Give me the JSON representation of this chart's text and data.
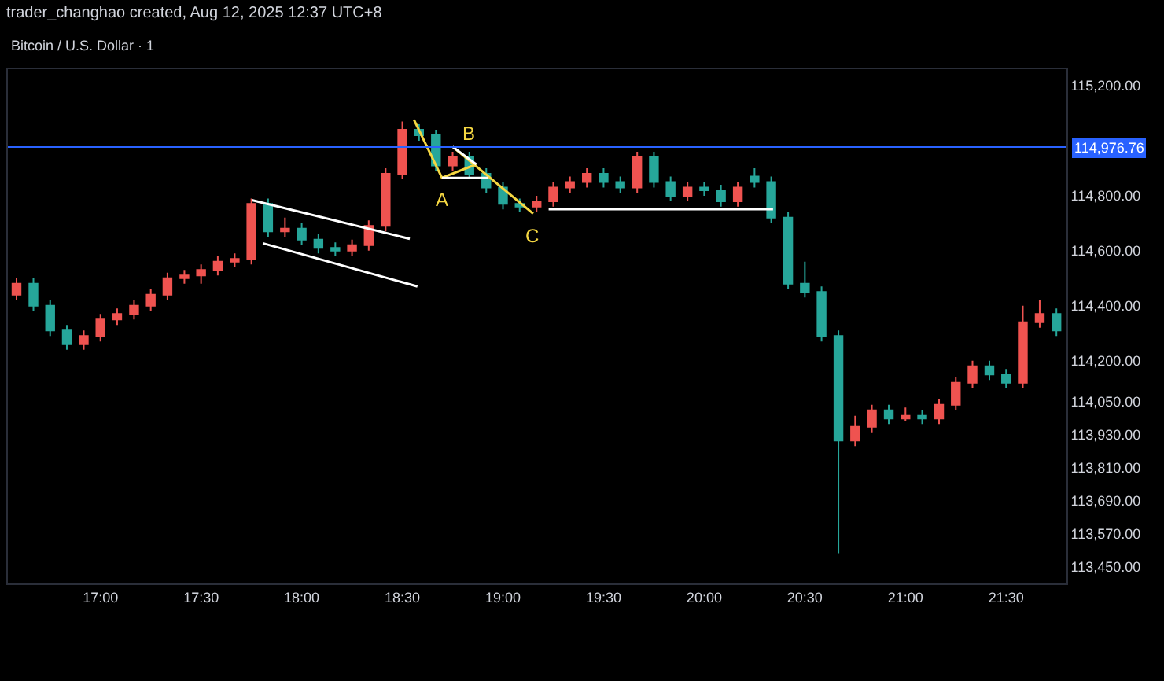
{
  "chart_data": {
    "type": "candlestick",
    "title": "Bitcoin / U.S. Dollar · 1",
    "subtitle": "trader_changhao created, Aug 12, 2025 12:37 UTC+8",
    "colors": [
      "#ef5350",
      "#26a69a",
      "#26a69a",
      "#26a69a",
      "#ef5350",
      "#ef5350",
      "#ef5350",
      "#ef5350",
      "#ef5350",
      "#ef5350",
      "#ef5350",
      "#ef5350",
      "#ef5350",
      "#ef5350",
      "#ef5350",
      "#26a69a",
      "#ef5350",
      "#26a69a",
      "#26a69a",
      "#26a69a",
      "#ef5350",
      "#ef5350",
      "#ef5350",
      "#ef5350",
      "#26a69a",
      "#26a69a",
      "#ef5350",
      "#26a69a",
      "#26a69a",
      "#26a69a",
      "#26a69a",
      "#ef5350",
      "#ef5350",
      "#ef5350",
      "#ef5350",
      "#26a69a",
      "#26a69a",
      "#ef5350",
      "#26a69a",
      "#26a69a",
      "#ef5350",
      "#26a69a",
      "#26a69a",
      "#ef5350",
      "#26a69a",
      "#26a69a",
      "#26a69a",
      "#26a69a",
      "#26a69a",
      "#26a69a",
      "#ef5350",
      "#ef5350",
      "#26a69a",
      "#ef5350",
      "#26a69a",
      "#ef5350",
      "#ef5350",
      "#ef5350",
      "#26a69a",
      "#26a69a",
      "#ef5350",
      "#ef5350",
      "#26a69a"
    ],
    "x": [
      16.583,
      16.667,
      16.75,
      16.833,
      16.917,
      17,
      17.083,
      17.167,
      17.25,
      17.333,
      17.417,
      17.5,
      17.583,
      17.667,
      17.75,
      17.833,
      17.917,
      18,
      18.083,
      18.167,
      18.25,
      18.333,
      18.417,
      18.5,
      18.583,
      18.667,
      18.75,
      18.833,
      18.917,
      19,
      19.083,
      19.167,
      19.25,
      19.333,
      19.417,
      19.5,
      19.583,
      19.667,
      19.75,
      19.833,
      19.917,
      20,
      20.083,
      20.167,
      20.25,
      20.333,
      20.417,
      20.5,
      20.583,
      20.667,
      20.75,
      20.833,
      20.917,
      21,
      21.083,
      21.167,
      21.25,
      21.333,
      21.417,
      21.5,
      21.583,
      21.667,
      21.75
    ],
    "ohlc": [
      [
        114440,
        114500,
        114420,
        114480
      ],
      [
        114480,
        114500,
        114380,
        114400
      ],
      [
        114400,
        114420,
        114290,
        114310
      ],
      [
        114310,
        114330,
        114240,
        114260
      ],
      [
        114260,
        114310,
        114240,
        114290
      ],
      [
        114290,
        114370,
        114270,
        114350
      ],
      [
        114350,
        114390,
        114330,
        114370
      ],
      [
        114370,
        114420,
        114350,
        114400
      ],
      [
        114400,
        114460,
        114380,
        114440
      ],
      [
        114440,
        114520,
        114420,
        114500
      ],
      [
        114500,
        114530,
        114480,
        114510
      ],
      [
        114510,
        114550,
        114480,
        114530
      ],
      [
        114530,
        114580,
        114510,
        114560
      ],
      [
        114560,
        114590,
        114540,
        114570
      ],
      [
        114570,
        114790,
        114550,
        114770
      ],
      [
        114770,
        114790,
        114650,
        114670
      ],
      [
        114670,
        114720,
        114650,
        114680
      ],
      [
        114680,
        114700,
        114620,
        114640
      ],
      [
        114640,
        114660,
        114590,
        114610
      ],
      [
        114610,
        114630,
        114580,
        114600
      ],
      [
        114600,
        114640,
        114580,
        114620
      ],
      [
        114620,
        114710,
        114600,
        114690
      ],
      [
        114690,
        114900,
        114670,
        114880
      ],
      [
        114880,
        115070,
        114860,
        115040
      ],
      [
        115040,
        115060,
        115000,
        115020
      ],
      [
        115020,
        115040,
        114890,
        114910
      ],
      [
        114910,
        114960,
        114890,
        114940
      ],
      [
        114940,
        114960,
        114860,
        114880
      ],
      [
        114880,
        114900,
        114810,
        114830
      ],
      [
        114830,
        114850,
        114750,
        114770
      ],
      [
        114770,
        114790,
        114740,
        114760
      ],
      [
        114760,
        114800,
        114740,
        114780
      ],
      [
        114780,
        114850,
        114760,
        114830
      ],
      [
        114830,
        114870,
        114810,
        114850
      ],
      [
        114850,
        114900,
        114830,
        114880
      ],
      [
        114880,
        114900,
        114830,
        114850
      ],
      [
        114850,
        114870,
        114810,
        114830
      ],
      [
        114830,
        114960,
        114810,
        114940
      ],
      [
        114940,
        114960,
        114830,
        114850
      ],
      [
        114850,
        114870,
        114780,
        114800
      ],
      [
        114800,
        114850,
        114780,
        114830
      ],
      [
        114830,
        114850,
        114800,
        114820
      ],
      [
        114820,
        114840,
        114760,
        114780
      ],
      [
        114780,
        114850,
        114760,
        114830
      ],
      [
        114870,
        114900,
        114830,
        114850
      ],
      [
        114850,
        114870,
        114700,
        114720
      ],
      [
        114720,
        114740,
        114460,
        114480
      ],
      [
        114480,
        114560,
        114430,
        114450
      ],
      [
        114450,
        114470,
        114270,
        114290
      ],
      [
        114290,
        114310,
        113500,
        113910
      ],
      [
        113910,
        114000,
        113890,
        113960
      ],
      [
        113960,
        114040,
        113940,
        114020
      ],
      [
        114020,
        114040,
        113970,
        113990
      ],
      [
        113990,
        114030,
        113980,
        114000
      ],
      [
        114000,
        114020,
        113970,
        113990
      ],
      [
        113990,
        114060,
        113970,
        114040
      ],
      [
        114040,
        114140,
        114020,
        114120
      ],
      [
        114120,
        114200,
        114100,
        114180
      ],
      [
        114180,
        114200,
        114130,
        114150
      ],
      [
        114150,
        114170,
        114100,
        114120
      ],
      [
        114120,
        114400,
        114100,
        114340
      ],
      [
        114340,
        114420,
        114320,
        114370
      ],
      [
        114370,
        114390,
        114290,
        114310
      ]
    ],
    "series": [
      {
        "type": "line",
        "color": "#ffffff",
        "x": [
          17.753,
          18.537
        ],
        "values": [
          114784,
          114643
        ]
      },
      {
        "type": "line",
        "color": "#ffffff",
        "x": [
          17.807,
          18.575
        ],
        "values": [
          114627,
          114470
        ]
      },
      {
        "type": "line",
        "color": "#f5d742",
        "x": [
          18.558,
          18.697,
          18.867
        ],
        "values": [
          115076,
          114865,
          114914
        ]
      },
      {
        "type": "line",
        "color": "#f5d742",
        "x": [
          18.75,
          19.15
        ],
        "values": [
          114978,
          114735
        ]
      },
      {
        "type": "line",
        "color": "#ffffff",
        "x": [
          18.75,
          18.867
        ],
        "values": [
          114978,
          114914
        ]
      },
      {
        "type": "line",
        "color": "#ffffff",
        "x": [
          18.697,
          18.928
        ],
        "values": [
          114865,
          114865
        ]
      },
      {
        "type": "line",
        "color": "#ffffff",
        "x": [
          19.227,
          20.342
        ],
        "values": [
          114751,
          114751
        ]
      }
    ],
    "ref_lines": [
      {
        "axis": "y",
        "value": 114976.76,
        "label": "114,976.76",
        "color": "#2962ff"
      }
    ],
    "annotations": [
      {
        "text": "A",
        "x": 18.697,
        "y": 114865
      },
      {
        "text": "B",
        "x": 18.75,
        "y": 114978
      },
      {
        "text": "C",
        "x": 19.15,
        "y": 114735
      }
    ],
    "xlim": [
      16.54,
      21.8
    ],
    "xticks": [
      {
        "value": 17,
        "label": "17:00"
      },
      {
        "value": 17.5,
        "label": "17:30"
      },
      {
        "value": 18,
        "label": "18:00"
      },
      {
        "value": 18.5,
        "label": "18:30"
      },
      {
        "value": 19,
        "label": "19:00"
      },
      {
        "value": 19.5,
        "label": "19:30"
      },
      {
        "value": 20,
        "label": "20:00"
      },
      {
        "value": 20.5,
        "label": "20:30"
      },
      {
        "value": 21,
        "label": "21:00"
      },
      {
        "value": 21.5,
        "label": "21:30"
      }
    ],
    "ylim": [
      113390,
      115260
    ],
    "yticks": [
      {
        "value": 115200,
        "label": "115,200.00"
      },
      {
        "value": 114800,
        "label": "114,800.00"
      },
      {
        "value": 114600,
        "label": "114,600.00"
      },
      {
        "value": 114400,
        "label": "114,400.00"
      },
      {
        "value": 114200,
        "label": "114,200.00"
      },
      {
        "value": 114050,
        "label": "114,050.00"
      },
      {
        "value": 113930,
        "label": "113,930.00"
      },
      {
        "value": 113810,
        "label": "113,810.00"
      },
      {
        "value": 113690,
        "label": "113,690.00"
      },
      {
        "value": 113570,
        "label": "113,570.00"
      },
      {
        "value": 113450,
        "label": "113,450.00"
      }
    ]
  }
}
